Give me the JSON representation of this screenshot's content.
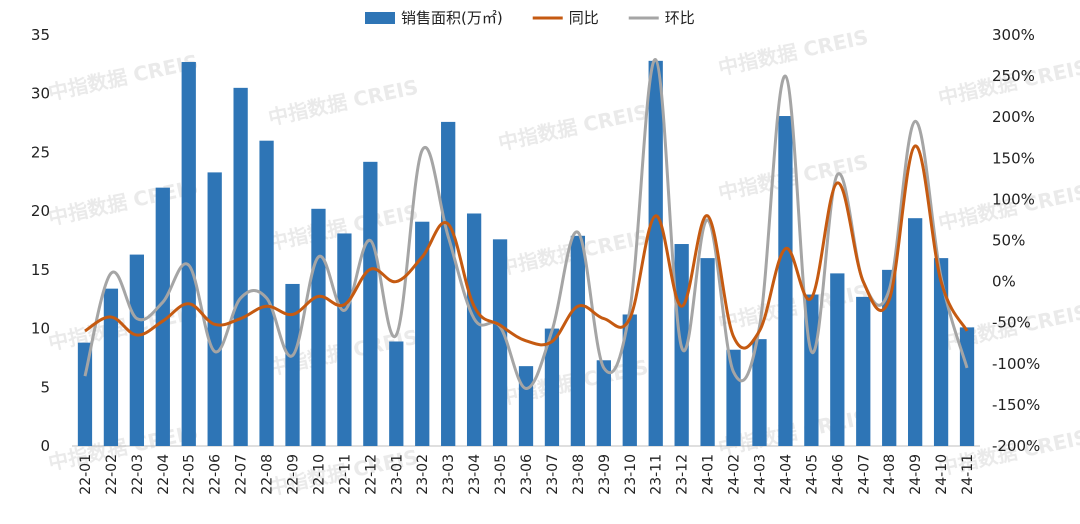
{
  "watermark": "中指数据 CREIS",
  "chart_data": {
    "type": "bar+line",
    "title": "",
    "categories": [
      "22-01",
      "22-02",
      "22-03",
      "22-04",
      "22-05",
      "22-06",
      "22-07",
      "22-08",
      "22-09",
      "22-10",
      "22-11",
      "22-12",
      "23-01",
      "23-02",
      "23-03",
      "23-04",
      "23-05",
      "23-06",
      "23-07",
      "23-08",
      "23-09",
      "23-10",
      "23-11",
      "23-12",
      "24-01",
      "24-02",
      "24-03",
      "24-04",
      "24-05",
      "24-06",
      "24-07",
      "24-08",
      "24-09",
      "24-10",
      "24-11"
    ],
    "left_axis": {
      "min": 0,
      "max": 35,
      "step": 5,
      "ticks": [
        "0",
        "5",
        "10",
        "15",
        "20",
        "25",
        "30",
        "35"
      ]
    },
    "right_axis": {
      "min": -200,
      "max": 300,
      "step": 50,
      "ticks": [
        "-200%",
        "-150%",
        "-100%",
        "-50%",
        "0%",
        "50%",
        "100%",
        "150%",
        "200%",
        "250%",
        "300%"
      ]
    },
    "series": [
      {
        "name": "销售面积(万㎡)",
        "kind": "bar",
        "axis": "left",
        "color": "#2e75b6",
        "values": [
          8.8,
          13.4,
          16.3,
          22.0,
          32.7,
          23.3,
          30.5,
          26.0,
          13.8,
          20.2,
          18.1,
          24.2,
          8.9,
          19.1,
          27.6,
          19.8,
          17.6,
          6.8,
          10.0,
          17.9,
          7.3,
          11.2,
          32.8,
          17.2,
          16.0,
          8.2,
          9.1,
          28.1,
          12.9,
          14.7,
          12.7,
          15.0,
          19.4,
          16.0,
          10.1
        ]
      },
      {
        "name": "同比",
        "kind": "line",
        "axis": "right",
        "color": "#c55a11",
        "values": [
          -60,
          -43,
          -65,
          -48,
          -27,
          -52,
          -45,
          -30,
          -40,
          -18,
          -28,
          15,
          0,
          30,
          70,
          -30,
          -53,
          -72,
          -73,
          -30,
          -45,
          -45,
          80,
          -30,
          80,
          -67,
          -60,
          40,
          -20,
          120,
          0,
          -22,
          165,
          0,
          -60
        ]
      },
      {
        "name": "环比",
        "kind": "line",
        "axis": "right",
        "color": "#a5a5a5",
        "values": [
          -115,
          10,
          -45,
          -25,
          20,
          -85,
          -20,
          -20,
          -90,
          30,
          -35,
          50,
          -65,
          160,
          55,
          -45,
          -55,
          -130,
          -60,
          60,
          -105,
          -35,
          270,
          -80,
          75,
          -110,
          -55,
          250,
          -85,
          130,
          0,
          -10,
          195,
          5,
          -105
        ]
      }
    ],
    "legend": "top-center"
  }
}
